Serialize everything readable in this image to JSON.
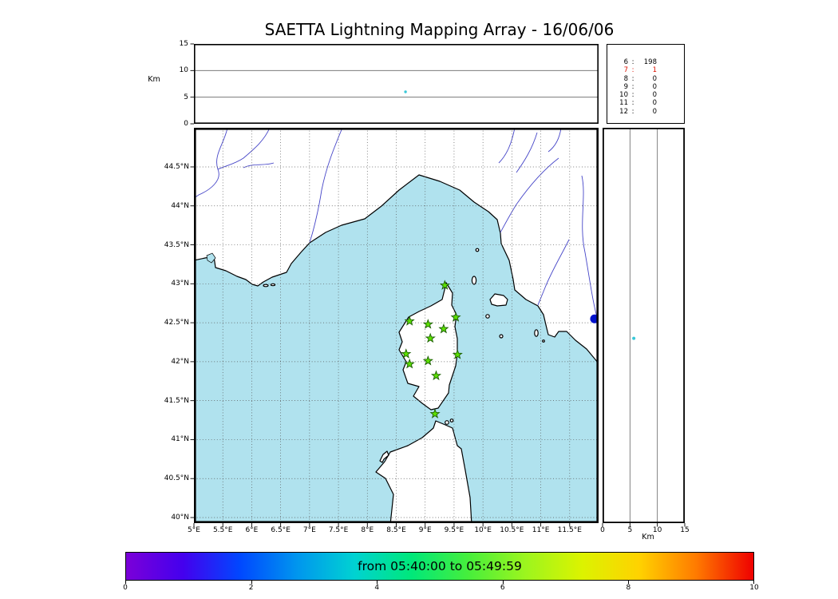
{
  "title": "SAETTA Lightning Mapping Array - 16/06/06",
  "alt_lon_panel": {
    "ylabel": "Km",
    "yticks": [
      "0",
      "5",
      "10",
      "15"
    ],
    "grid_alt_km": [
      5,
      10
    ],
    "points": [
      {
        "lon": 8.66,
        "alt_km": 6.0,
        "color": "#38c8d8"
      }
    ]
  },
  "station_counts": {
    "separator": ":",
    "rows": [
      {
        "station": "6",
        "count": "198",
        "color": "#000000"
      },
      {
        "station": "7",
        "count": "1",
        "color": "#dd1100"
      },
      {
        "station": "8",
        "count": "0",
        "color": "#000000"
      },
      {
        "station": "9",
        "count": "0",
        "color": "#000000"
      },
      {
        "station": "10",
        "count": "0",
        "color": "#000000"
      },
      {
        "station": "11",
        "count": "0",
        "color": "#000000"
      },
      {
        "station": "12",
        "count": "0",
        "color": "#000000"
      }
    ]
  },
  "map_panel": {
    "lat_ticks": [
      "44.5°N",
      "44°N",
      "43.5°N",
      "43°N",
      "42.5°N",
      "42°N",
      "41.5°N",
      "41°N",
      "40.5°N",
      "40°N"
    ],
    "lon_ticks": [
      "5°E",
      "5.5°E",
      "6°E",
      "6.5°E",
      "7°E",
      "7.5°E",
      "8°E",
      "8.5°E",
      "9°E",
      "9.5°E",
      "10°E",
      "10.5°E",
      "11°E",
      "11.5°E"
    ],
    "sea_color": "#b0e2ee",
    "land_color": "#ffffff",
    "river_color": "#4646c8",
    "station_marker": {
      "fill": "#5ce000",
      "stroke": "#1a5c00"
    },
    "stations": [
      {
        "lon": 9.34,
        "lat": 42.98
      },
      {
        "lon": 8.73,
        "lat": 42.52
      },
      {
        "lon": 9.05,
        "lat": 42.48
      },
      {
        "lon": 9.32,
        "lat": 42.42
      },
      {
        "lon": 9.53,
        "lat": 42.57
      },
      {
        "lon": 9.09,
        "lat": 42.3
      },
      {
        "lon": 8.67,
        "lat": 42.1
      },
      {
        "lon": 9.56,
        "lat": 42.09
      },
      {
        "lon": 8.73,
        "lat": 41.97
      },
      {
        "lon": 9.05,
        "lat": 42.01
      },
      {
        "lon": 9.19,
        "lat": 41.82
      },
      {
        "lon": 9.17,
        "lat": 41.33
      }
    ],
    "flash": {
      "lon": 11.93,
      "lat": 42.55,
      "color": "#0012cc"
    }
  },
  "alt_lat_panel": {
    "xlabel": "Km",
    "xticks": [
      "0",
      "5",
      "10",
      "15"
    ],
    "grid_alt_km": [
      5,
      10
    ],
    "points": [
      {
        "lat": 42.3,
        "alt_km": 5.7,
        "color": "#38c8d8"
      }
    ]
  },
  "colorbar": {
    "label": "from 05:40:00 to 05:49:59",
    "ticks": [
      "0",
      "2",
      "4",
      "6",
      "8",
      "10"
    ],
    "gradient": [
      "#7b00d8",
      "#4400ee",
      "#0048ff",
      "#0096ee",
      "#00d2d2",
      "#00e87a",
      "#46ee3c",
      "#9cf51e",
      "#dcf300",
      "#ffd200",
      "#ff7a00",
      "#ef0000"
    ]
  },
  "chart_data": [
    {
      "type": "scatter",
      "panel": "altitude_vs_longitude",
      "title": "SAETTA Lightning Mapping Array - 16/06/06",
      "ylabel": "Km",
      "xlim": [
        5,
        12
      ],
      "ylim": [
        0,
        15
      ],
      "yticks": [
        0,
        5,
        10,
        15
      ],
      "points": [
        {
          "lon_deg_e": 8.66,
          "alt_km": 6.0
        }
      ]
    },
    {
      "type": "table",
      "panel": "sources_by_station_count",
      "columns": [
        "num_stations",
        "num_sources"
      ],
      "rows": [
        [
          6,
          198
        ],
        [
          7,
          1
        ],
        [
          8,
          0
        ],
        [
          9,
          0
        ],
        [
          10,
          0
        ],
        [
          11,
          0
        ],
        [
          12,
          0
        ]
      ],
      "highlighted_row_index": 1
    },
    {
      "type": "scatter",
      "panel": "plan_view_map",
      "region": "Corsica / Ligurian and Tyrrhenian Sea",
      "xlim_deg_e": [
        5,
        12
      ],
      "ylim_deg_n": [
        39.93,
        45.03
      ],
      "xticks_deg_e": [
        5,
        5.5,
        6,
        6.5,
        7,
        7.5,
        8,
        8.5,
        9,
        9.5,
        10,
        10.5,
        11,
        11.5
      ],
      "yticks_deg_n": [
        40,
        40.5,
        41,
        41.5,
        42,
        42.5,
        43,
        43.5,
        44,
        44.5
      ],
      "grid": true,
      "station_markers_lon_lat": [
        [
          9.34,
          42.98
        ],
        [
          8.73,
          42.52
        ],
        [
          9.05,
          42.48
        ],
        [
          9.32,
          42.42
        ],
        [
          9.53,
          42.57
        ],
        [
          9.09,
          42.3
        ],
        [
          8.67,
          42.1
        ],
        [
          9.56,
          42.09
        ],
        [
          8.73,
          41.97
        ],
        [
          9.05,
          42.01
        ],
        [
          9.19,
          41.82
        ],
        [
          9.17,
          41.33
        ]
      ],
      "lightning_cluster": {
        "lon_deg_e": 11.93,
        "lat_deg_n": 42.55
      }
    },
    {
      "type": "scatter",
      "panel": "altitude_vs_latitude",
      "xlabel": "Km",
      "xlim": [
        0,
        15
      ],
      "xticks": [
        0,
        5,
        10,
        15
      ],
      "ylim_deg_n": [
        39.93,
        45.03
      ],
      "points": [
        {
          "alt_km": 5.7,
          "lat_deg_n": 42.3
        }
      ]
    },
    {
      "type": "colorbar",
      "label": "from 05:40:00 to 05:49:59",
      "range": [
        0,
        10
      ],
      "ticks": [
        0,
        2,
        4,
        6,
        8,
        10
      ],
      "time_start": "05:40:00",
      "time_end": "05:49:59",
      "colormap": "rainbow (violet to red)"
    }
  ]
}
